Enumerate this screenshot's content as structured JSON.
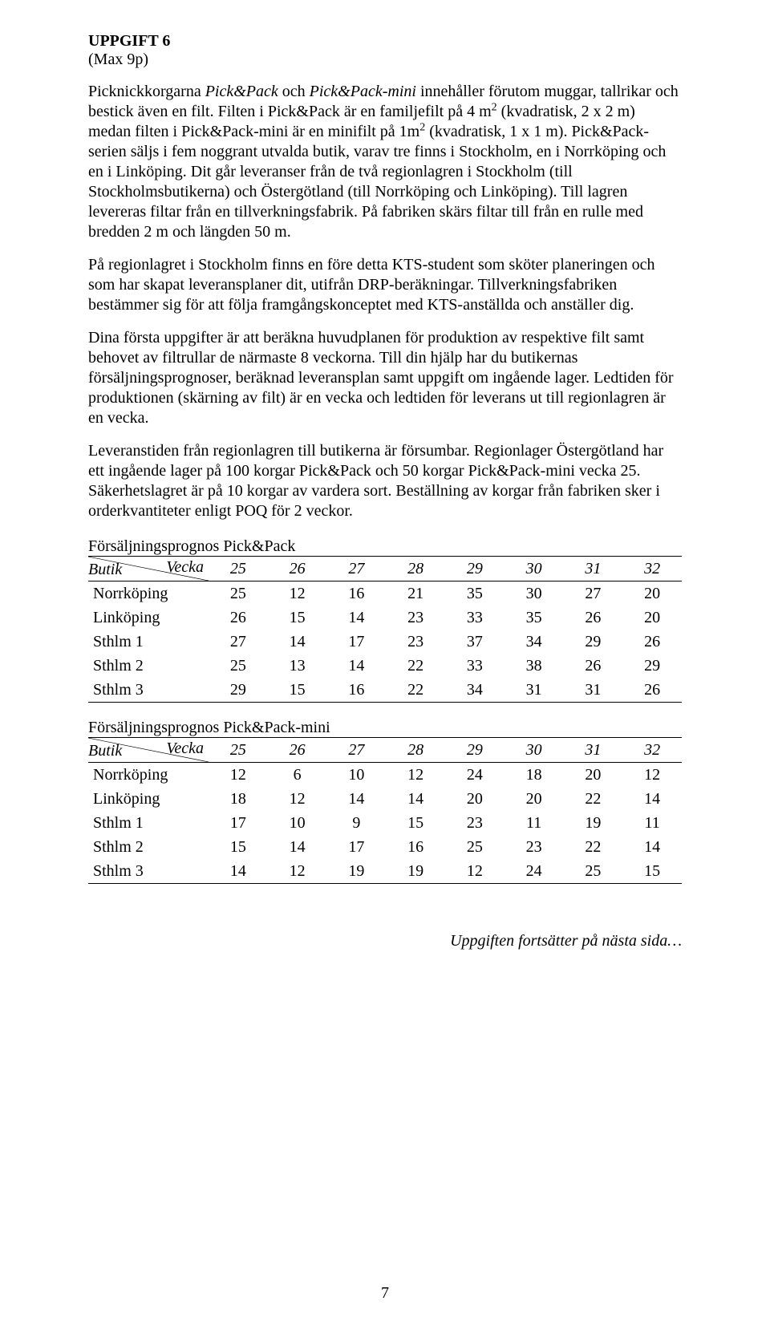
{
  "task_title": "UPPGIFT 6",
  "max_points": "(Max 9p)",
  "paragraphs": {
    "p1_pre": "Picknickkorgarna ",
    "p1_em1": "Pick&Pack",
    "p1_mid1": " och ",
    "p1_em2": "Pick&Pack-mini",
    "p1_mid2": " innehåller förutom muggar, tallrikar och bestick även en filt. Filten i Pick&Pack är en familjefilt på 4 m",
    "p1_sup1": "2",
    "p1_mid3": " (kvadratisk, 2 x 2 m) medan filten i Pick&Pack-mini är en minifilt på 1m",
    "p1_sup2": "2",
    "p1_mid4": " (kvadratisk, 1 x 1 m). Pick&Pack-serien säljs i fem noggrant utvalda butik, varav tre finns i Stockholm, en i Norrköping och en i Linköping. Dit går leveranser från de två regionlagren i Stockholm (till Stockholmsbutikerna) och Östergötland (till Norrköping och Linköping). Till lagren levereras filtar från en tillverkningsfabrik. På fabriken skärs filtar till från en rulle med bredden 2 m och längden 50 m.",
    "p2": "På regionlagret i Stockholm finns en före detta KTS-student som sköter planeringen och som har skapat leveransplaner dit, utifrån DRP-beräkningar. Tillverkningsfabriken bestämmer sig för att följa framgångskonceptet med KTS-anställda och anställer dig.",
    "p3": "Dina första uppgifter är att beräkna huvudplanen för produktion av respektive filt samt behovet av filtrullar de närmaste 8 veckorna. Till din hjälp har du butikernas försäljningsprognoser, beräknad leveransplan samt uppgift om ingående lager. Ledtiden för produktionen (skärning av filt) är en vecka och ledtiden för leverans ut till regionlagren är en vecka.",
    "p4": "Leveranstiden från regionlagren till butikerna är försumbar. Regionlager Östergötland har ett ingående lager på 100 korgar Pick&Pack och 50 korgar Pick&Pack-mini vecka 25. Säkerhetslagret är på 10 korgar av vardera sort. Beställning av korgar från fabriken sker i orderkvantiteter enligt POQ för 2 veckor."
  },
  "table1": {
    "title": "Försäljningsprognos Pick&Pack",
    "header_top": "Vecka",
    "header_bottom": "Butik",
    "weeks": [
      "25",
      "26",
      "27",
      "28",
      "29",
      "30",
      "31",
      "32"
    ],
    "rows": [
      {
        "label": "Norrköping",
        "vals": [
          "25",
          "12",
          "16",
          "21",
          "35",
          "30",
          "27",
          "20"
        ]
      },
      {
        "label": "Linköping",
        "vals": [
          "26",
          "15",
          "14",
          "23",
          "33",
          "35",
          "26",
          "20"
        ]
      },
      {
        "label": "Sthlm 1",
        "vals": [
          "27",
          "14",
          "17",
          "23",
          "37",
          "34",
          "29",
          "26"
        ]
      },
      {
        "label": "Sthlm 2",
        "vals": [
          "25",
          "13",
          "14",
          "22",
          "33",
          "38",
          "26",
          "29"
        ]
      },
      {
        "label": "Sthlm 3",
        "vals": [
          "29",
          "15",
          "16",
          "22",
          "34",
          "31",
          "31",
          "26"
        ]
      }
    ]
  },
  "table2": {
    "title": "Försäljningsprognos Pick&Pack-mini",
    "header_top": "Vecka",
    "header_bottom": "Butik",
    "weeks": [
      "25",
      "26",
      "27",
      "28",
      "29",
      "30",
      "31",
      "32"
    ],
    "rows": [
      {
        "label": "Norrköping",
        "vals": [
          "12",
          "6",
          "10",
          "12",
          "24",
          "18",
          "20",
          "12"
        ]
      },
      {
        "label": "Linköping",
        "vals": [
          "18",
          "12",
          "14",
          "14",
          "20",
          "20",
          "22",
          "14"
        ]
      },
      {
        "label": "Sthlm 1",
        "vals": [
          "17",
          "10",
          "9",
          "15",
          "23",
          "11",
          "19",
          "11"
        ]
      },
      {
        "label": "Sthlm 2",
        "vals": [
          "15",
          "14",
          "17",
          "16",
          "25",
          "23",
          "22",
          "14"
        ]
      },
      {
        "label": "Sthlm 3",
        "vals": [
          "14",
          "12",
          "19",
          "19",
          "12",
          "24",
          "25",
          "15"
        ]
      }
    ]
  },
  "footer_note": "Uppgiften fortsätter på nästa sida…",
  "page_number": "7"
}
